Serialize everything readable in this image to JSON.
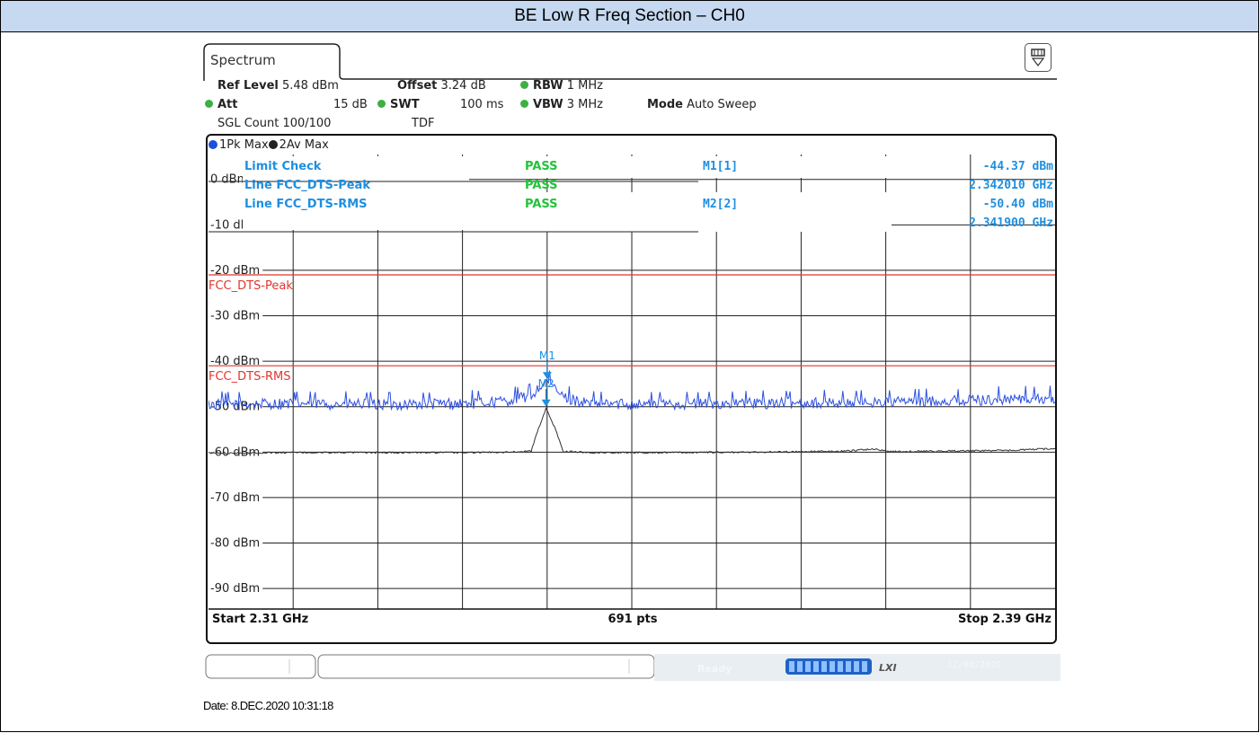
{
  "page_title": "BE Low R Freq Section – CH0",
  "tab": {
    "label": "Spectrum"
  },
  "settings": {
    "ref_level_label": "Ref Level",
    "ref_level_value": "5.48 dBm",
    "offset_label": "Offset",
    "offset_value": "3.24 dB",
    "rbw_label": "RBW",
    "rbw_value": "1 MHz",
    "att_label": "Att",
    "att_value": "15 dB",
    "swt_label": "SWT",
    "swt_value": "100 ms",
    "vbw_label": "VBW",
    "vbw_value": "3 MHz",
    "mode_label": "Mode",
    "mode_value": "Auto Sweep",
    "sgl_count": "SGL Count 100/100",
    "tdf": "TDF"
  },
  "traces_legend": [
    {
      "label": "1Pk Max",
      "color": "#1f4fd8"
    },
    {
      "label": "2Av Max",
      "color": "#222222"
    }
  ],
  "limit_table": {
    "rows": [
      {
        "name": "Limit Check",
        "result": "PASS"
      },
      {
        "name": "Line FCC_DTS-Peak",
        "result": "PASS"
      },
      {
        "name": "Line FCC_DTS-RMS",
        "result": "PASS"
      }
    ]
  },
  "markers": [
    {
      "id": "M1[1]",
      "level": "-44.37 dBm",
      "freq": "2.342010 GHz"
    },
    {
      "id": "M2[2]",
      "level": "-50.40 dBm",
      "freq": "2.341900 GHz"
    }
  ],
  "marker_tags": [
    "M1",
    "M2"
  ],
  "limit_lines": [
    {
      "name": "FCC_DTS-Peak",
      "level_dbm": -21.0,
      "color": "#e0352b"
    },
    {
      "name": "FCC_DTS-RMS",
      "level_dbm": -41.0,
      "color": "#e0352b"
    }
  ],
  "y_axis": {
    "labels": [
      "0 dBm",
      "-10 dBm",
      "-20 dBm",
      "-30 dBm",
      "-40 dBm",
      "-50 dBm",
      "-60 dBm",
      "-70 dBm",
      "-80 dBm",
      "-90 dBm"
    ],
    "top_dbm": 5.48,
    "bottom_dbm": -94.52
  },
  "footer": {
    "start": "Start 2.31 GHz",
    "points": "691 pts",
    "stop": "Stop 2.39 GHz"
  },
  "status": {
    "ready": "Ready",
    "datetime": "12/08/2020"
  },
  "capture_date": "Date: 8.DEC.2020 10:31:18",
  "chart_data": {
    "type": "line",
    "title": "",
    "xlabel": "",
    "ylabel": "",
    "x_range_ghz": [
      2.31,
      2.39
    ],
    "ylim": [
      -94.52,
      5.48
    ],
    "points": 691,
    "series": [
      {
        "name": "1Pk Max",
        "x": [
          2.31,
          2.318,
          2.326,
          2.334,
          2.338,
          2.3405,
          2.342,
          2.3435,
          2.346,
          2.354,
          2.362,
          2.37,
          2.378,
          2.386,
          2.39
        ],
        "y": [
          -49.5,
          -49.3,
          -49.5,
          -49.3,
          -48.8,
          -47.5,
          -44.37,
          -47.8,
          -49.4,
          -49.3,
          -49.2,
          -49.1,
          -48.8,
          -48.3,
          -48.2
        ]
      },
      {
        "name": "2Av Max",
        "x": [
          2.31,
          2.318,
          2.326,
          2.334,
          2.338,
          2.3405,
          2.341,
          2.3419,
          2.3428,
          2.3435,
          2.346,
          2.354,
          2.362,
          2.37,
          2.3728,
          2.3745,
          2.378,
          2.386,
          2.39
        ],
        "y": [
          -60.2,
          -60.1,
          -60.1,
          -60.1,
          -60.0,
          -59.8,
          -56.0,
          -50.4,
          -55.0,
          -59.8,
          -60.1,
          -60.1,
          -60.0,
          -59.8,
          -59.3,
          -59.9,
          -59.8,
          -59.6,
          -59.2
        ]
      }
    ]
  }
}
